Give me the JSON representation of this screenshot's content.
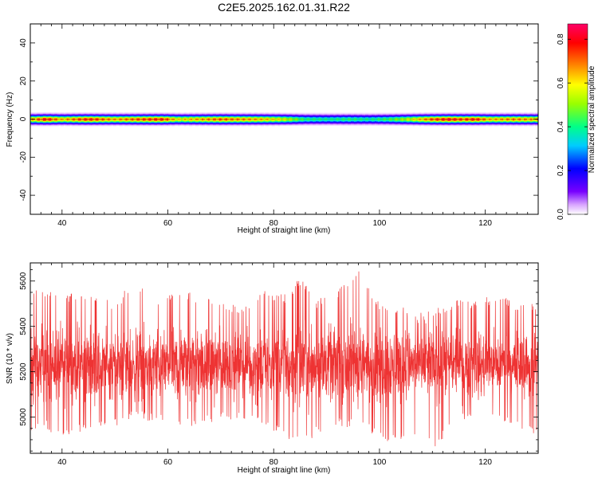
{
  "title": "C2E5.2025.162.01.31.R22",
  "chart_data": [
    {
      "type": "heatmap",
      "xlabel": "Height of straight line (km)",
      "ylabel": "Frequency (Hz)",
      "xlim": [
        34,
        130
      ],
      "ylim": [
        -50,
        50
      ],
      "xticks": [
        40,
        60,
        80,
        100,
        120
      ],
      "yticks": [
        -40,
        -20,
        0,
        20,
        40
      ],
      "colorbar": {
        "label": "Normalized spectral amplitude",
        "range": [
          0.0,
          0.87
        ],
        "ticks": [
          0.0,
          0.2,
          0.4,
          0.6,
          0.8
        ],
        "colors": [
          "#ffffff",
          "#7700ff",
          "#0000ff",
          "#00ffff",
          "#00ff66",
          "#aaff00",
          "#ffff00",
          "#ff8800",
          "#ff0000",
          "#ff0077"
        ]
      },
      "band_center_hz": 0,
      "band_halfwidth_hz": 3,
      "peak_amplitude_at_zero_hz": [
        {
          "x": 34,
          "v": 0.7
        },
        {
          "x": 37,
          "v": 0.86
        },
        {
          "x": 40,
          "v": 0.7
        },
        {
          "x": 45,
          "v": 0.84
        },
        {
          "x": 50,
          "v": 0.72
        },
        {
          "x": 55,
          "v": 0.8
        },
        {
          "x": 59,
          "v": 0.84
        },
        {
          "x": 62,
          "v": 0.65
        },
        {
          "x": 66,
          "v": 0.72
        },
        {
          "x": 70,
          "v": 0.78
        },
        {
          "x": 74,
          "v": 0.74
        },
        {
          "x": 78,
          "v": 0.7
        },
        {
          "x": 82,
          "v": 0.62
        },
        {
          "x": 86,
          "v": 0.45
        },
        {
          "x": 90,
          "v": 0.42
        },
        {
          "x": 94,
          "v": 0.45
        },
        {
          "x": 98,
          "v": 0.42
        },
        {
          "x": 102,
          "v": 0.48
        },
        {
          "x": 106,
          "v": 0.62
        },
        {
          "x": 110,
          "v": 0.8
        },
        {
          "x": 113,
          "v": 0.86
        },
        {
          "x": 116,
          "v": 0.8
        },
        {
          "x": 118,
          "v": 0.85
        },
        {
          "x": 121,
          "v": 0.7
        },
        {
          "x": 125,
          "v": 0.75
        },
        {
          "x": 130,
          "v": 0.72
        }
      ]
    },
    {
      "type": "line",
      "xlabel": "Height of straight line (km)",
      "ylabel": "SNR (10 * v/v)",
      "xlim": [
        34,
        130
      ],
      "ylim": [
        4840,
        5680
      ],
      "xticks": [
        40,
        60,
        80,
        100,
        120
      ],
      "yticks": [
        5000,
        5200,
        5400,
        5600
      ],
      "series": [
        {
          "color": "#ee3333",
          "mean": 5230,
          "envelope": [
            {
              "x": 34,
              "lo": 4920,
              "hi": 5560
            },
            {
              "x": 36,
              "lo": 4960,
              "hi": 5580
            },
            {
              "x": 40,
              "lo": 4900,
              "hi": 5540
            },
            {
              "x": 45,
              "lo": 4950,
              "hi": 5560
            },
            {
              "x": 50,
              "lo": 4960,
              "hi": 5500
            },
            {
              "x": 53,
              "lo": 4990,
              "hi": 5600
            },
            {
              "x": 58,
              "lo": 4980,
              "hi": 5530
            },
            {
              "x": 62,
              "lo": 4950,
              "hi": 5560
            },
            {
              "x": 66,
              "lo": 4960,
              "hi": 5540
            },
            {
              "x": 70,
              "lo": 4980,
              "hi": 5520
            },
            {
              "x": 74,
              "lo": 4990,
              "hi": 5480
            },
            {
              "x": 78,
              "lo": 4970,
              "hi": 5560
            },
            {
              "x": 82,
              "lo": 4900,
              "hi": 5540
            },
            {
              "x": 85,
              "lo": 4870,
              "hi": 5620
            },
            {
              "x": 88,
              "lo": 4920,
              "hi": 5520
            },
            {
              "x": 92,
              "lo": 4960,
              "hi": 5560
            },
            {
              "x": 96,
              "lo": 4950,
              "hi": 5670
            },
            {
              "x": 99,
              "lo": 4920,
              "hi": 5520
            },
            {
              "x": 102,
              "lo": 4880,
              "hi": 5500
            },
            {
              "x": 105,
              "lo": 4900,
              "hi": 5480
            },
            {
              "x": 108,
              "lo": 4920,
              "hi": 5460
            },
            {
              "x": 111,
              "lo": 4860,
              "hi": 5480
            },
            {
              "x": 114,
              "lo": 4990,
              "hi": 5520
            },
            {
              "x": 118,
              "lo": 4980,
              "hi": 5520
            },
            {
              "x": 122,
              "lo": 4990,
              "hi": 5540
            },
            {
              "x": 126,
              "lo": 4960,
              "hi": 5510
            },
            {
              "x": 130,
              "lo": 4900,
              "hi": 5500
            }
          ]
        }
      ]
    }
  ]
}
